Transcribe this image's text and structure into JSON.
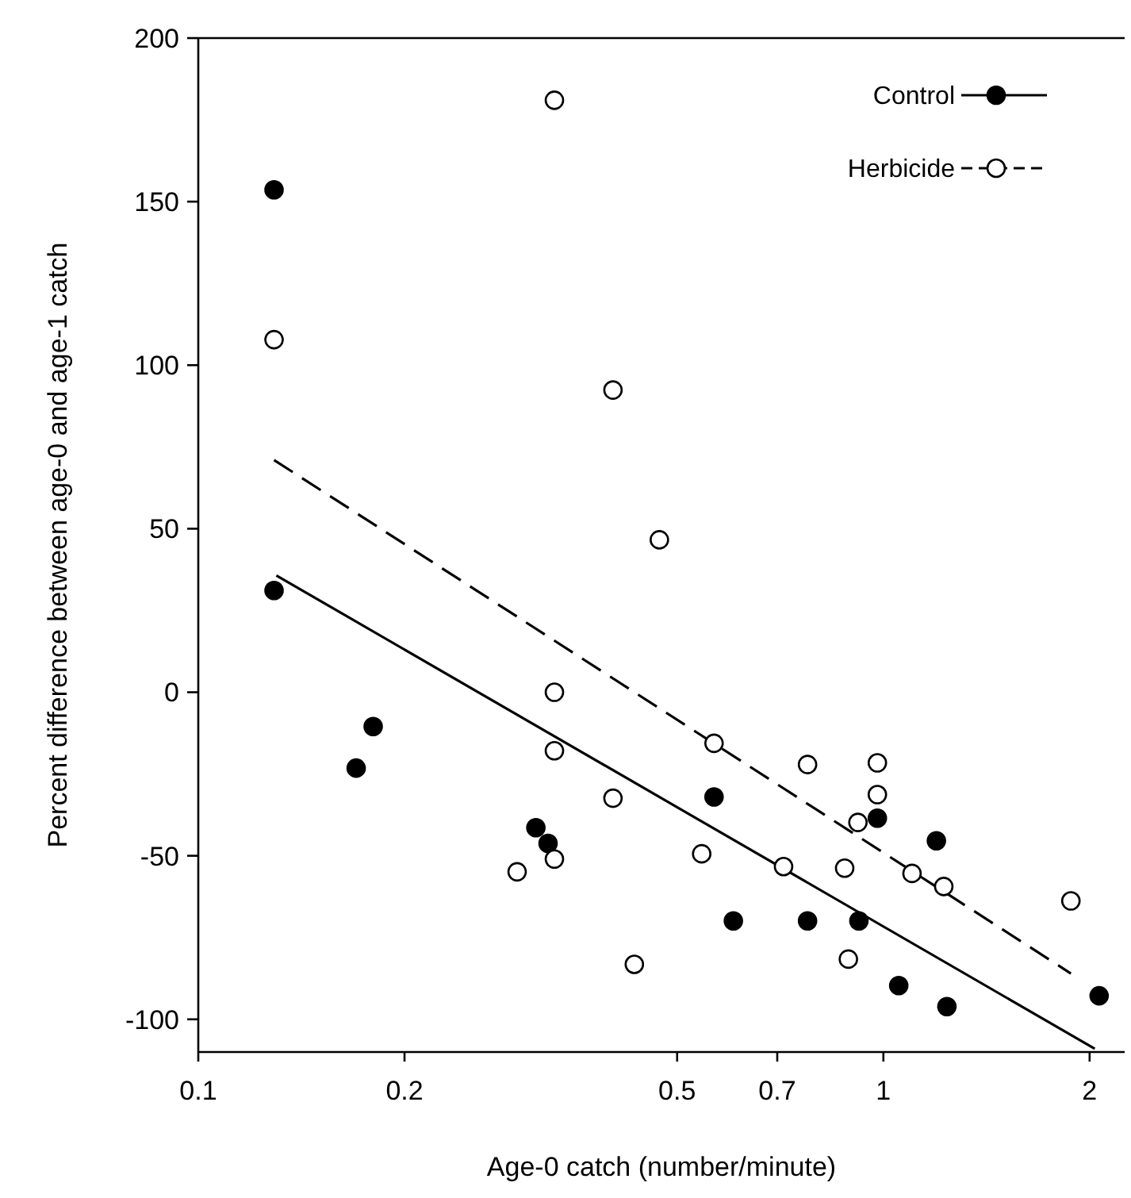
{
  "chart_data": {
    "type": "scatter",
    "xlabel": "Age-0 catch (number/minute)",
    "ylabel": "Percent difference between age-0 and age-1 catch",
    "log": "x",
    "xlim": [
      0.1,
      2.25
    ],
    "xticks": [
      0.1,
      0.2,
      0.5,
      0.7,
      1,
      2
    ],
    "ylim": [
      -110,
      200
    ],
    "yticks": [
      -100,
      -50,
      0,
      50,
      100,
      150,
      200
    ],
    "grid": false,
    "legend": "top right",
    "marker": "circle",
    "series": [
      {
        "name": "Control",
        "color": "#000000",
        "x": [
          0.129,
          0.129,
          0.18,
          0.17,
          0.311,
          0.324,
          0.566,
          0.604,
          0.775,
          0.98,
          1.195,
          0.921,
          1.053,
          1.238,
          2.065
        ],
        "values": [
          153.6,
          31.1,
          -10.5,
          -23.2,
          -41.4,
          -46.2,
          -32,
          -69.9,
          -69.9,
          -38.5,
          -45.4,
          -69.9,
          -89.7,
          -96.1,
          -92.8
        ]
      },
      {
        "type": "line",
        "color": "#000000",
        "line_style": "solid",
        "marker": "none",
        "x": [
          0.13,
          2.035
        ],
        "values": [
          35.7,
          -109
        ]
      },
      {
        "name": "Herbicide",
        "color": "#ffffff",
        "x": [
          0.129,
          0.403,
          0.471,
          0.331,
          0.331,
          0.331,
          0.403,
          0.331,
          0.292,
          0.433,
          0.566,
          0.543,
          0.775,
          0.715,
          0.98,
          0.98,
          0.918,
          0.878,
          1.101,
          1.225,
          0.889,
          1.878
        ],
        "values": [
          107.8,
          92.4,
          46.6,
          181,
          0,
          -17.9,
          -32.4,
          -51,
          -54.9,
          -83.2,
          -15.6,
          -49.4,
          -22.1,
          -53.3,
          -21.6,
          -31.3,
          -39.8,
          -53.8,
          -55.4,
          -59.4,
          -81.6,
          -63.8
        ]
      },
      {
        "type": "line",
        "color": "#000000",
        "line_style": "dashed",
        "marker": "none",
        "x": [
          0.129,
          1.878
        ],
        "values": [
          71,
          -86
        ]
      }
    ]
  }
}
